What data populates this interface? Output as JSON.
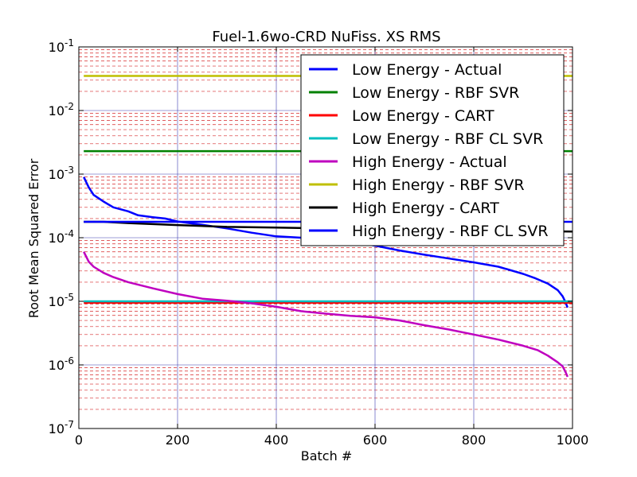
{
  "chart_data": {
    "type": "line",
    "title": "Fuel-1.6wo-CRD NuFiss. XS RMS",
    "xlabel": "Batch #",
    "ylabel": "Root Mean Squared Error",
    "xlim": [
      0,
      1000
    ],
    "ylim": [
      1e-07,
      0.1
    ],
    "yscale": "log",
    "grid": true,
    "legend_position": "top-right",
    "x_ticks": [
      {
        "value": 0,
        "label": "0"
      },
      {
        "value": 200,
        "label": "200"
      },
      {
        "value": 400,
        "label": "400"
      },
      {
        "value": 600,
        "label": "600"
      },
      {
        "value": 800,
        "label": "800"
      },
      {
        "value": 1000,
        "label": "1000"
      }
    ],
    "y_ticks": [
      {
        "exp": -7,
        "base": "10",
        "sup": "-7"
      },
      {
        "exp": -6,
        "base": "10",
        "sup": "-6"
      },
      {
        "exp": -5,
        "base": "10",
        "sup": "-5"
      },
      {
        "exp": -4,
        "base": "10",
        "sup": "-4"
      },
      {
        "exp": -3,
        "base": "10",
        "sup": "-3"
      },
      {
        "exp": -2,
        "base": "10",
        "sup": "-2"
      },
      {
        "exp": -1,
        "base": "10",
        "sup": "-1"
      }
    ],
    "series": [
      {
        "name": "Low Energy - Actual",
        "color": "#0000ff",
        "x": [
          10,
          20,
          30,
          50,
          70,
          100,
          120,
          150,
          175,
          200,
          250,
          300,
          350,
          400,
          450,
          500,
          550,
          600,
          650,
          700,
          750,
          800,
          850,
          900,
          925,
          950,
          970,
          980,
          985,
          990
        ],
        "y": [
          0.0009,
          0.00062,
          0.00047,
          0.00037,
          0.0003,
          0.00026,
          0.000225,
          0.00021,
          0.0002,
          0.00018,
          0.00016,
          0.00014,
          0.00012,
          0.000105,
          0.0001,
          9.5e-05,
          8.8e-05,
          7.5e-05,
          6.3e-05,
          5.4e-05,
          4.7e-05,
          4.1e-05,
          3.5e-05,
          2.7e-05,
          2.3e-05,
          1.9e-05,
          1.5e-05,
          1.2e-05,
          1e-05,
          8e-06
        ]
      },
      {
        "name": "Low Energy - RBF SVR",
        "color": "#008000",
        "x": [
          10,
          1000
        ],
        "y": [
          0.0023,
          0.0023
        ]
      },
      {
        "name": "Low Energy - CART",
        "color": "#ff0000",
        "x": [
          10,
          1000
        ],
        "y": [
          9.5e-06,
          9.5e-06
        ]
      },
      {
        "name": "Low Energy - RBF CL SVR",
        "color": "#00bfbf",
        "x": [
          10,
          1000
        ],
        "y": [
          1e-05,
          1e-05
        ]
      },
      {
        "name": "High Energy - Actual",
        "color": "#bf00bf",
        "x": [
          10,
          20,
          30,
          50,
          70,
          100,
          150,
          200,
          250,
          300,
          350,
          400,
          450,
          500,
          550,
          600,
          650,
          700,
          750,
          800,
          850,
          900,
          930,
          950,
          970,
          980,
          985,
          990
        ],
        "y": [
          6e-05,
          4.2e-05,
          3.5e-05,
          2.8e-05,
          2.4e-05,
          2e-05,
          1.6e-05,
          1.3e-05,
          1.1e-05,
          1.02e-05,
          9.3e-06,
          8.2e-06,
          7e-06,
          6.4e-06,
          5.9e-06,
          5.6e-06,
          5e-06,
          4.2e-06,
          3.6e-06,
          3e-06,
          2.5e-06,
          2e-06,
          1.7e-06,
          1.4e-06,
          1.1e-06,
          9.5e-07,
          8e-07,
          6.5e-07
        ]
      },
      {
        "name": "High Energy - RBF SVR",
        "color": "#bfbf00",
        "x": [
          10,
          1000
        ],
        "y": [
          0.035,
          0.035
        ]
      },
      {
        "name": "High Energy - CART",
        "color": "#000000",
        "x": [
          10,
          50,
          100,
          200,
          300,
          400,
          500,
          600,
          700,
          800,
          900,
          1000
        ],
        "y": [
          0.000178,
          0.000178,
          0.00017,
          0.000158,
          0.000148,
          0.000144,
          0.00014,
          0.000137,
          0.000133,
          0.00013,
          0.000127,
          0.000125
        ]
      },
      {
        "name": "High Energy - RBF CL SVR",
        "color": "#0000ff",
        "x": [
          10,
          1000
        ],
        "y": [
          0.000178,
          0.000178
        ]
      }
    ]
  }
}
